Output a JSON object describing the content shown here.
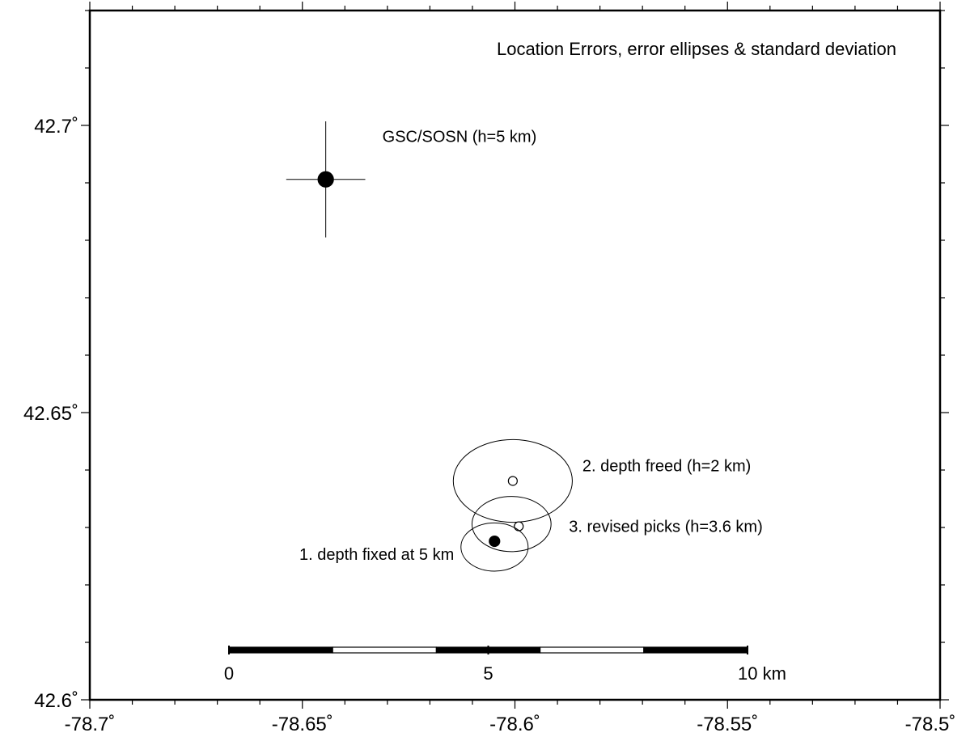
{
  "map": {
    "title": "Location Errors, error ellipses & standard deviation",
    "x_range": [
      -78.7,
      -78.5
    ],
    "y_range": [
      42.6,
      42.72
    ],
    "x_ticks": [
      {
        "value": -78.7,
        "label": "-78.7˚"
      },
      {
        "value": -78.65,
        "label": "-78.65˚"
      },
      {
        "value": -78.6,
        "label": "-78.6˚"
      },
      {
        "value": -78.55,
        "label": "-78.55˚"
      },
      {
        "value": -78.5,
        "label": "-78.5˚"
      }
    ],
    "y_ticks": [
      {
        "value": 42.6,
        "label": "42.6˚"
      },
      {
        "value": 42.65,
        "label": "42.65˚"
      },
      {
        "value": 42.7,
        "label": "42.7˚"
      }
    ],
    "minor_x_step": 0.01,
    "minor_y_step": 0.01,
    "locations": [
      {
        "label": "GSC/SOSN (h=5 km)",
        "lon": -78.6445,
        "lat": 42.6906,
        "filled": true,
        "size": "large",
        "err_lon": 0.0093,
        "err_lat": 0.0101
      },
      {
        "label": "2. depth freed (h=2 km)",
        "lon": -78.6005,
        "lat": 42.6381,
        "filled": false,
        "size": "small",
        "ellipse": {
          "rx_deg": 0.014,
          "ry_deg": 0.0072,
          "angle": 0
        }
      },
      {
        "label": "3. revised picks (h=3.6 km)",
        "lon": -78.5991,
        "lat": 42.6302,
        "filled": false,
        "size": "small",
        "ellipse": {
          "rx_deg": 0.0093,
          "ry_deg": 0.0048,
          "angle": 0,
          "center_lon": -78.6008,
          "center_lat": 42.6306
        }
      },
      {
        "label": "1. depth fixed at 5 km",
        "lon": -78.6048,
        "lat": 42.6276,
        "filled": true,
        "size": "medium",
        "ellipse": {
          "rx_deg": 0.0079,
          "ry_deg": 0.0042,
          "angle": 0,
          "center_lon": -78.6048,
          "center_lat": 42.6266
        }
      }
    ],
    "scale_bar": {
      "labels": [
        {
          "km": 0,
          "text": "0"
        },
        {
          "km": 5,
          "text": "5"
        },
        {
          "km": 10,
          "text": "10 km"
        }
      ],
      "segments_km": 2,
      "total_km": 10
    }
  }
}
